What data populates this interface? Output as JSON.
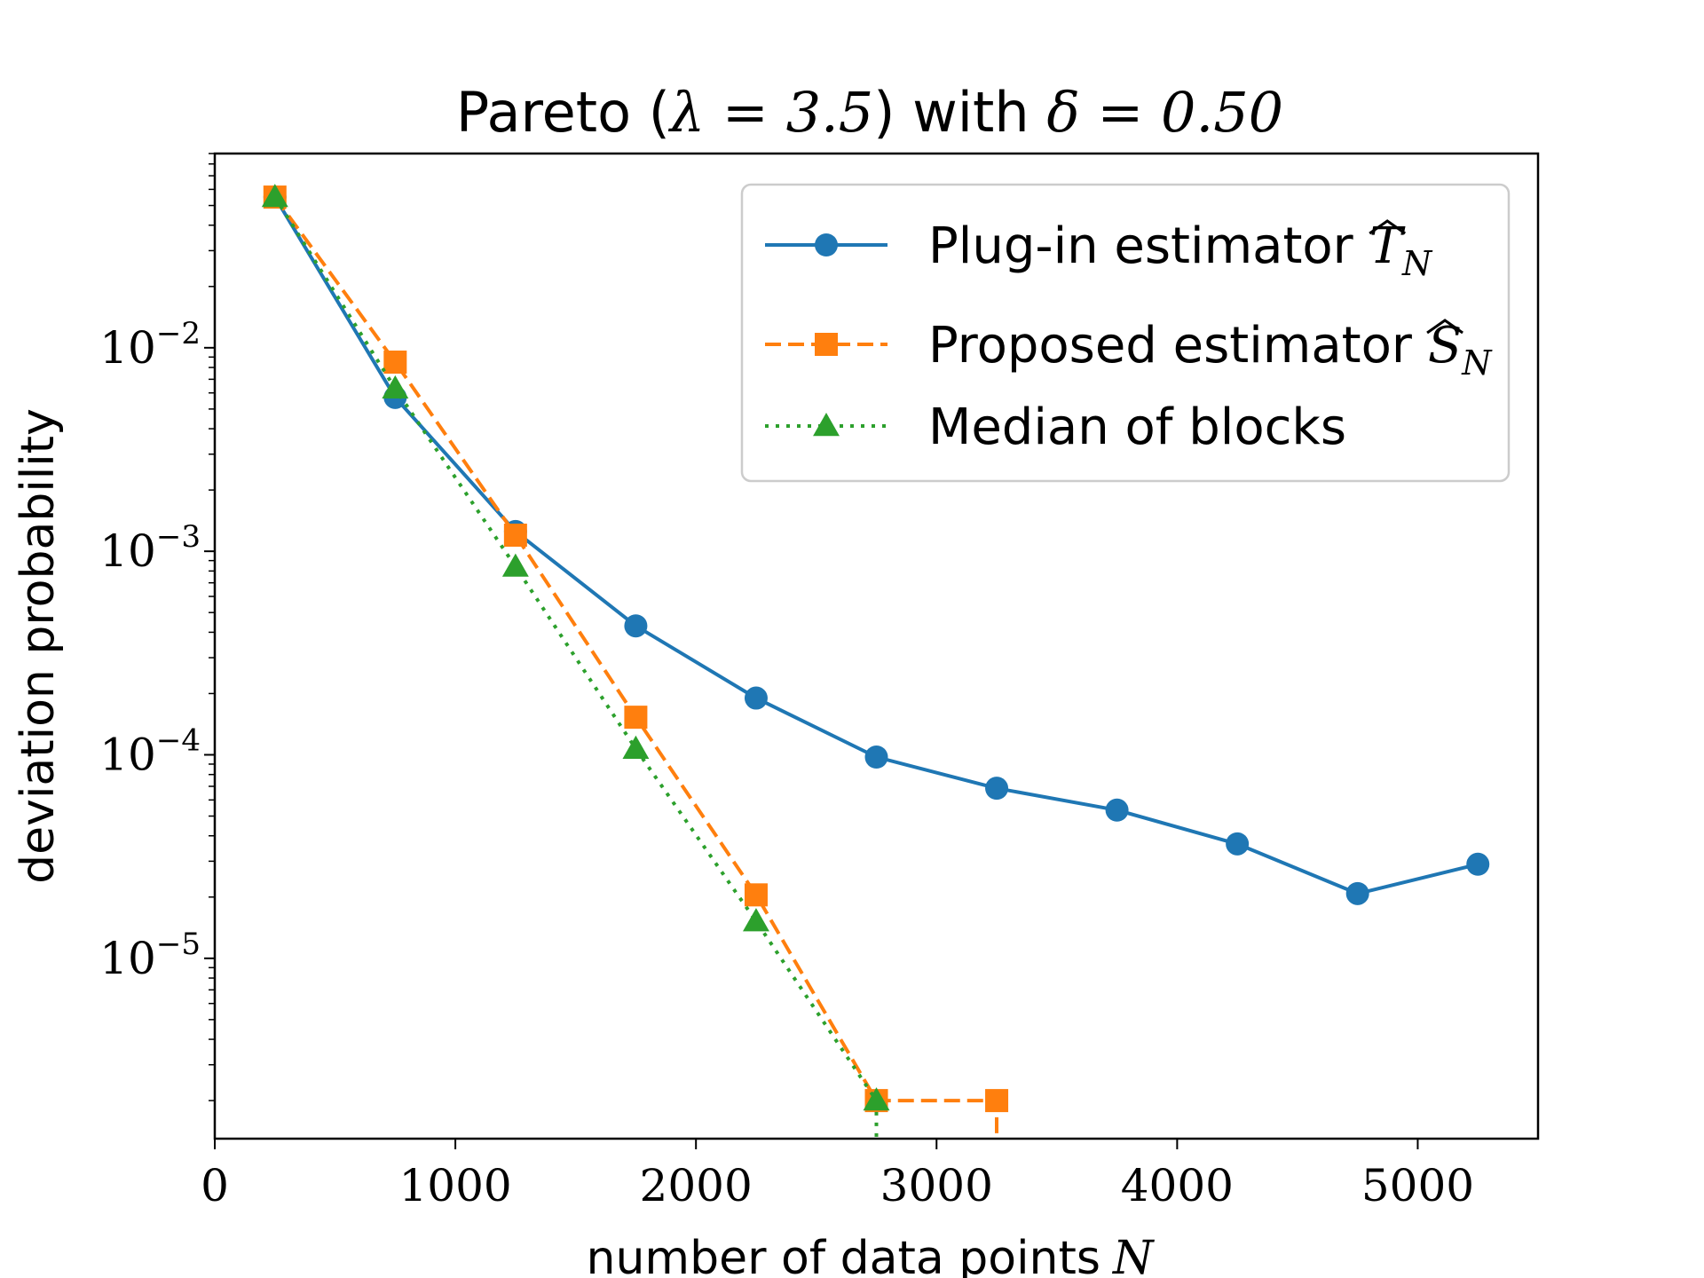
{
  "chart_data": {
    "type": "line",
    "title": "Pareto (λ = 3.5) with δ = 0.50",
    "title_parts": {
      "prefix": "Pareto (",
      "lambda_expr": "λ = 3.5",
      "middle": ") with ",
      "delta_expr": "δ = 0.50"
    },
    "xlabel": "number of data points",
    "xlabel_var": "N",
    "ylabel": "deviation probability",
    "y_scale": "log",
    "xlim": [
      0,
      5500
    ],
    "ylim": [
      1.3e-06,
      0.09
    ],
    "x_ticks": [
      0,
      1000,
      2000,
      3000,
      4000,
      5000
    ],
    "x_tick_labels": [
      "0",
      "1000",
      "2000",
      "3000",
      "4000",
      "5000"
    ],
    "y_ticks": [
      {
        "value": 0.01,
        "base": "10",
        "exp": "−2"
      },
      {
        "value": 0.001,
        "base": "10",
        "exp": "−3"
      },
      {
        "value": 0.0001,
        "base": "10",
        "exp": "−4"
      },
      {
        "value": 1e-05,
        "base": "10",
        "exp": "−5"
      }
    ],
    "legend_position": "top-right",
    "series": [
      {
        "name": "Plug-in estimator T̂_N",
        "legend_text": "Plug-in estimator",
        "legend_sym": "T",
        "legend_sub": "N",
        "color": "#1f77b4",
        "line_style": "solid",
        "marker": "circle",
        "x": [
          250,
          750,
          1250,
          1750,
          2250,
          2750,
          3250,
          3750,
          4250,
          4750,
          5250
        ],
        "y": [
          0.055,
          0.0057,
          0.00125,
          0.00043,
          0.00019,
          9.75e-05,
          6.85e-05,
          5.35e-05,
          3.65e-05,
          2.08e-05,
          2.9e-05
        ]
      },
      {
        "name": "Proposed estimator Ŝ_N",
        "legend_text": "Proposed estimator",
        "legend_sym": "S",
        "legend_sub": "N",
        "color": "#ff7f0e",
        "line_style": "dashed",
        "marker": "square",
        "x": [
          250,
          750,
          1250,
          1750,
          2250,
          2750,
          3250
        ],
        "y": [
          0.055,
          0.0085,
          0.0012,
          0.000153,
          2.05e-05,
          2e-06,
          2e-06
        ],
        "drop_to_axis_after_last": true
      },
      {
        "name": "Median of blocks",
        "legend_text": "Median of blocks",
        "legend_sym": "",
        "legend_sub": "",
        "color": "#2ca02c",
        "line_style": "dotted",
        "marker": "triangle",
        "x": [
          250,
          750,
          1250,
          1750,
          2250,
          2750
        ],
        "y": [
          0.055,
          0.0063,
          0.00084,
          0.000107,
          1.52e-05,
          2e-06
        ],
        "drop_to_axis_after_last": true
      }
    ]
  }
}
